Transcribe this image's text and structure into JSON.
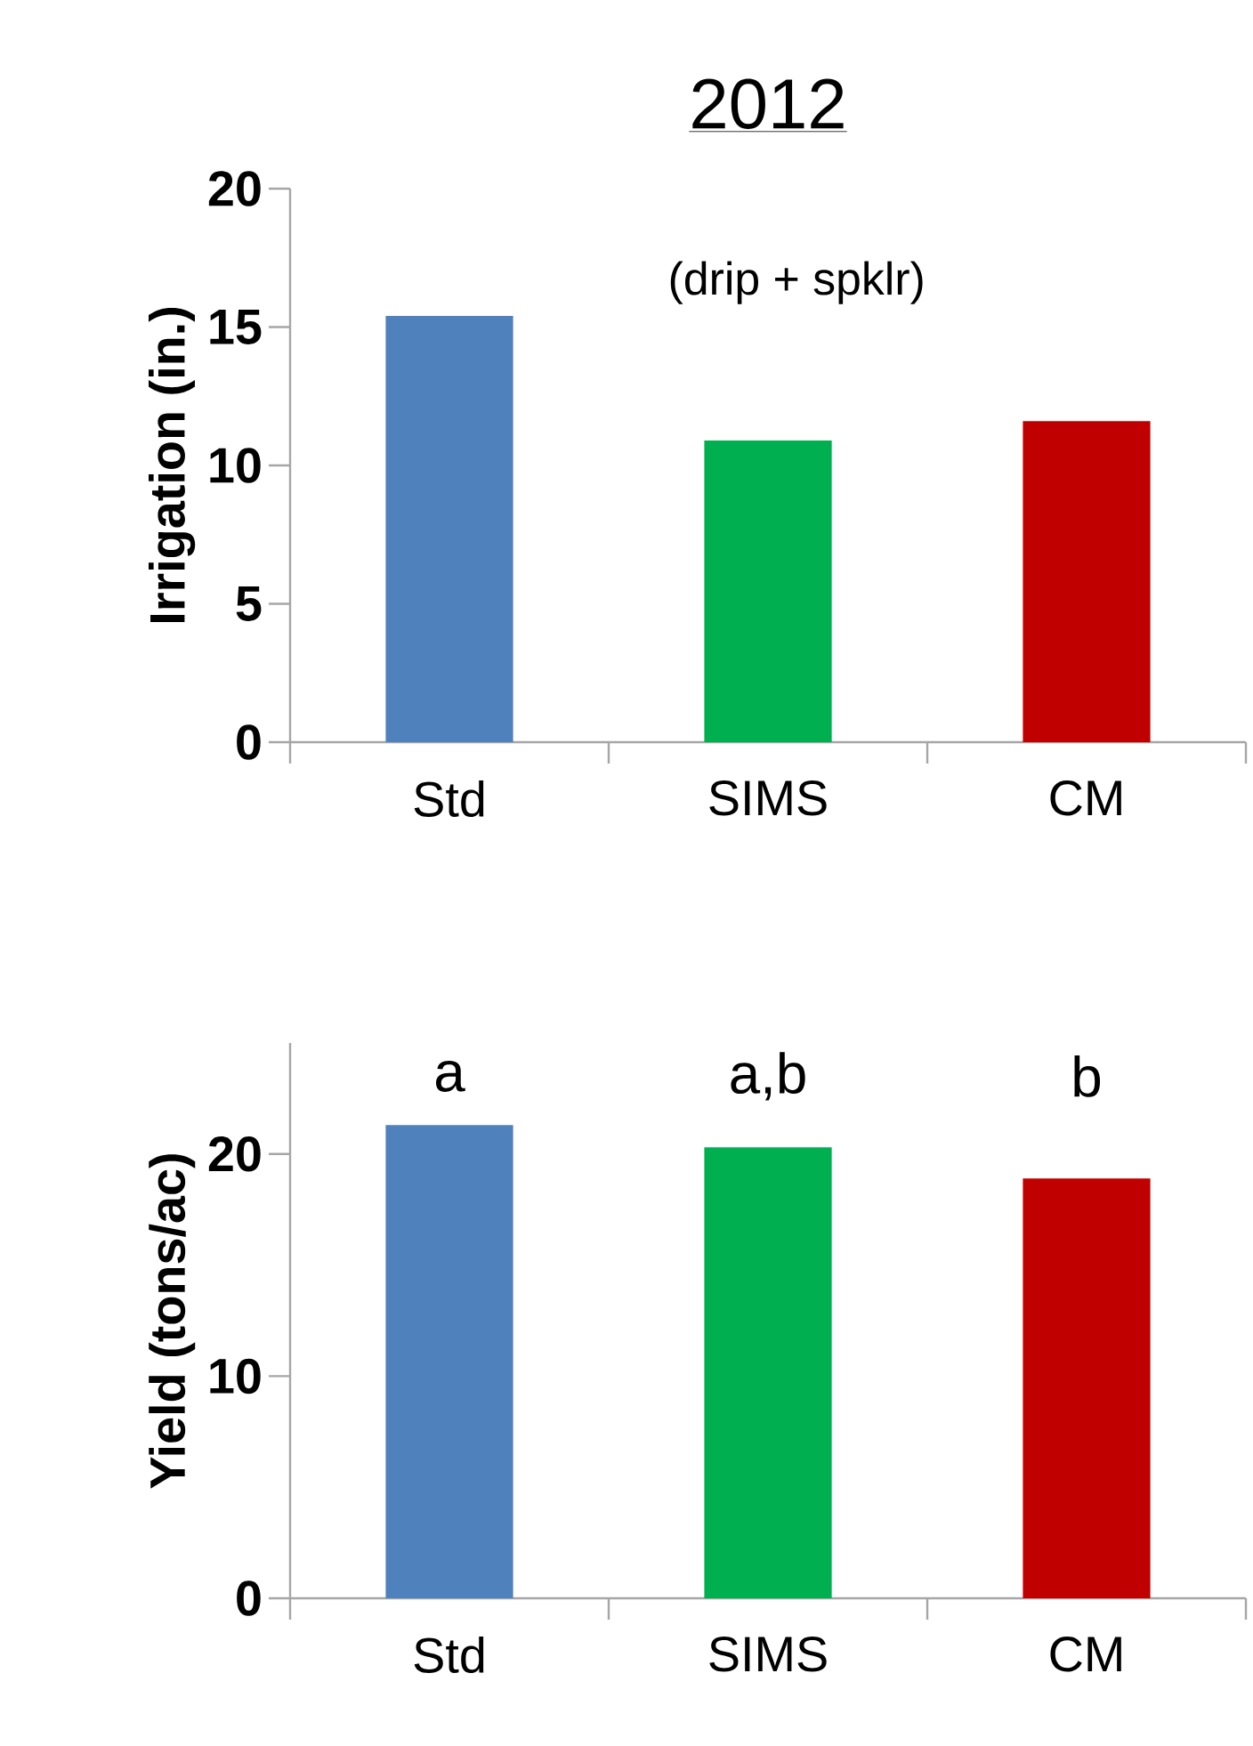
{
  "chart_data": [
    {
      "type": "bar",
      "title": "2012",
      "ylabel": "Irrigation (in.)",
      "categories": [
        "Std",
        "SIMS",
        "CM"
      ],
      "values": [
        15.4,
        10.9,
        11.6
      ],
      "colors": [
        "#4f81bd",
        "#00b050",
        "#c00000"
      ],
      "ylim": [
        0,
        20
      ],
      "yticks": [
        0,
        5,
        10,
        15,
        20
      ],
      "annotations": [
        "(drip + spklr)"
      ]
    },
    {
      "type": "bar",
      "ylabel": "Yield (tons/ac)",
      "categories": [
        "Std",
        "SIMS",
        "CM"
      ],
      "values": [
        21.3,
        20.3,
        18.9
      ],
      "colors": [
        "#4f81bd",
        "#00b050",
        "#c00000"
      ],
      "ylim": [
        0,
        25
      ],
      "yticks": [
        0,
        10,
        20
      ],
      "annotations": [
        "a",
        "a,b",
        "b"
      ]
    }
  ]
}
